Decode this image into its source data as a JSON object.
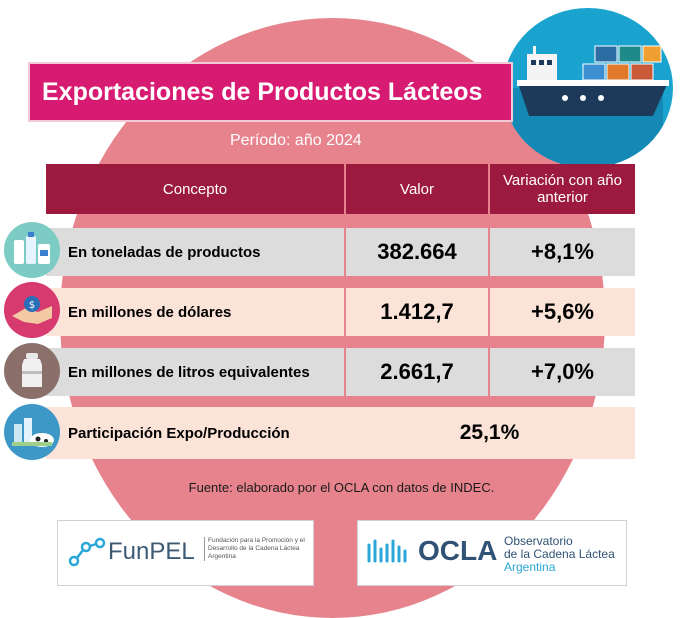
{
  "title": "Exportaciones de Productos Lácteos",
  "period": "Período: año 2024",
  "columns": {
    "concepto": "Concepto",
    "valor": "Valor",
    "variacion": "Variación con año anterior"
  },
  "rows": [
    {
      "label": "En toneladas de productos",
      "value": "382.664",
      "change": "+8,1%",
      "icon": "dairy-products-icon"
    },
    {
      "label": "En millones de dólares",
      "value": "1.412,7",
      "change": "+5,6%",
      "icon": "money-handshake-icon"
    },
    {
      "label": "En millones de litros equivalentes",
      "value": "2.661,7",
      "change": "+7,0%",
      "icon": "milk-can-icon"
    }
  ],
  "participation": {
    "label": "Participación Expo/Producción",
    "value": "25,1%",
    "icon": "dairy-farm-icon"
  },
  "source": "Fuente: elaborado por el OCLA con datos de INDEC.",
  "logos": {
    "funpel": {
      "name": "FunPEL",
      "tagline": "Fundación para la Promoción y el Desarrollo de la Cadena Láctea Argentina"
    },
    "ocla": {
      "name": "OCLA",
      "line1": "Observatorio",
      "line2": "de la Cadena Láctea",
      "line3": "Argentina"
    }
  },
  "colors": {
    "magenta": "#d81b72",
    "header": "#9c1a3e",
    "circle": "#e6838c",
    "ship_bg": "#1aa3cf"
  }
}
